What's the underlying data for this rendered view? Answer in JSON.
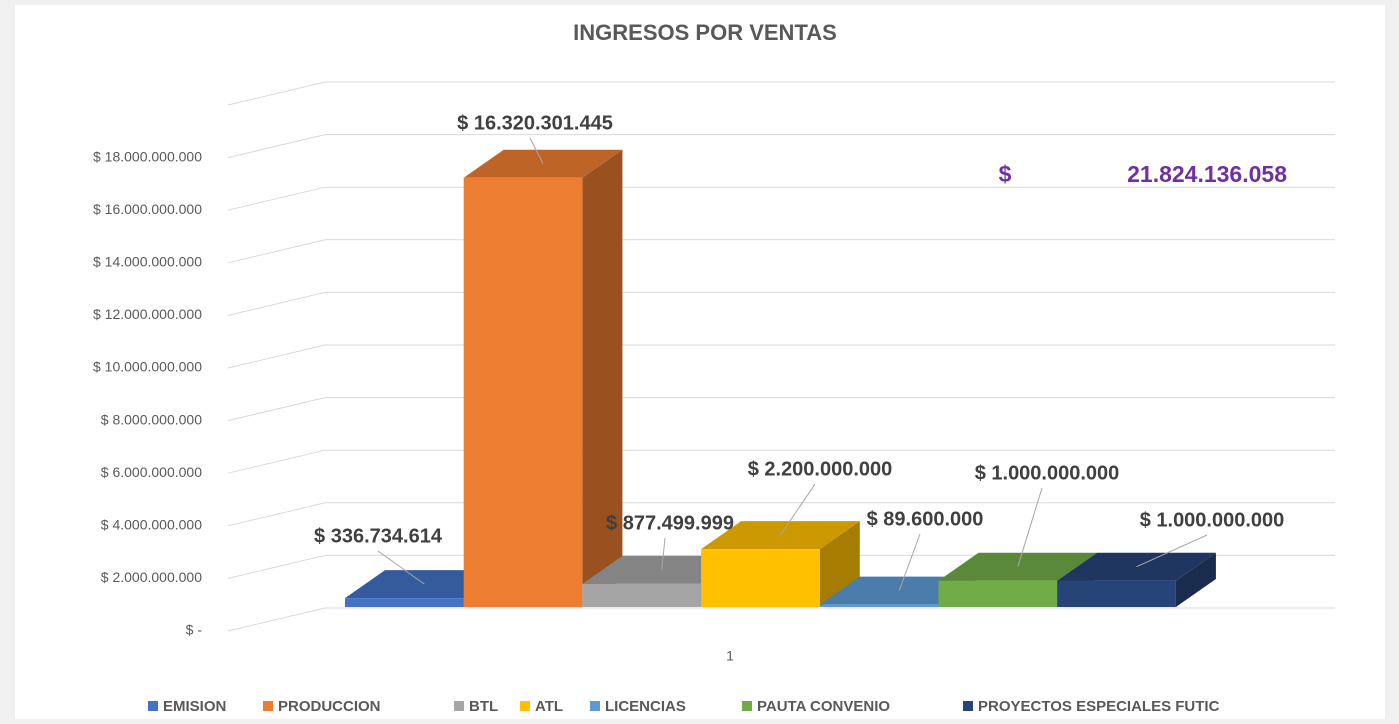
{
  "chart_data": {
    "type": "bar3d",
    "title": "INGRESOS POR VENTAS",
    "categories": [
      "1"
    ],
    "series": [
      {
        "name": "EMISION",
        "color": "#4472c4",
        "values": [
          336734614
        ],
        "value_labels": [
          "$ 336.734.614"
        ]
      },
      {
        "name": "PRODUCCION",
        "color": "#ed7d31",
        "values": [
          16320301445
        ],
        "value_labels": [
          "$ 16.320.301.445"
        ]
      },
      {
        "name": "BTL",
        "color": "#a5a5a5",
        "values": [
          877499999
        ],
        "value_labels": [
          "$ 877.499.999"
        ]
      },
      {
        "name": "ATL",
        "color": "#ffc000",
        "values": [
          2200000000
        ],
        "value_labels": [
          "$ 2.200.000.000"
        ]
      },
      {
        "name": "LICENCIAS",
        "color": "#5b9bd5",
        "values": [
          89600000
        ],
        "value_labels": [
          "$ 89.600.000"
        ]
      },
      {
        "name": "PAUTA CONVENIO",
        "color": "#70ad47",
        "values": [
          1000000000
        ],
        "value_labels": [
          "$ 1.000.000.000"
        ]
      },
      {
        "name": "PROYECTOS ESPECIALES FUTIC",
        "color": "#264478",
        "values": [
          1000000000
        ],
        "value_labels": [
          "$ 1.000.000.000"
        ]
      }
    ],
    "annotations": [
      "$",
      "21.824.136.058"
    ],
    "ylim": [
      0,
      20000000000
    ],
    "yticks": [
      {
        "value": 0,
        "label": "$ -"
      },
      {
        "value": 2000000000,
        "label": "$ 2.000.000.000"
      },
      {
        "value": 4000000000,
        "label": "$ 4.000.000.000"
      },
      {
        "value": 6000000000,
        "label": "$ 6.000.000.000"
      },
      {
        "value": 8000000000,
        "label": "$ 8.000.000.000"
      },
      {
        "value": 10000000000,
        "label": "$ 10.000.000.000"
      },
      {
        "value": 12000000000,
        "label": "$ 12.000.000.000"
      },
      {
        "value": 14000000000,
        "label": "$ 14.000.000.000"
      },
      {
        "value": 16000000000,
        "label": "$ 16.000.000.000"
      },
      {
        "value": 18000000000,
        "label": "$ 18.000.000.000"
      }
    ],
    "grid": true,
    "legend": "bottom"
  }
}
